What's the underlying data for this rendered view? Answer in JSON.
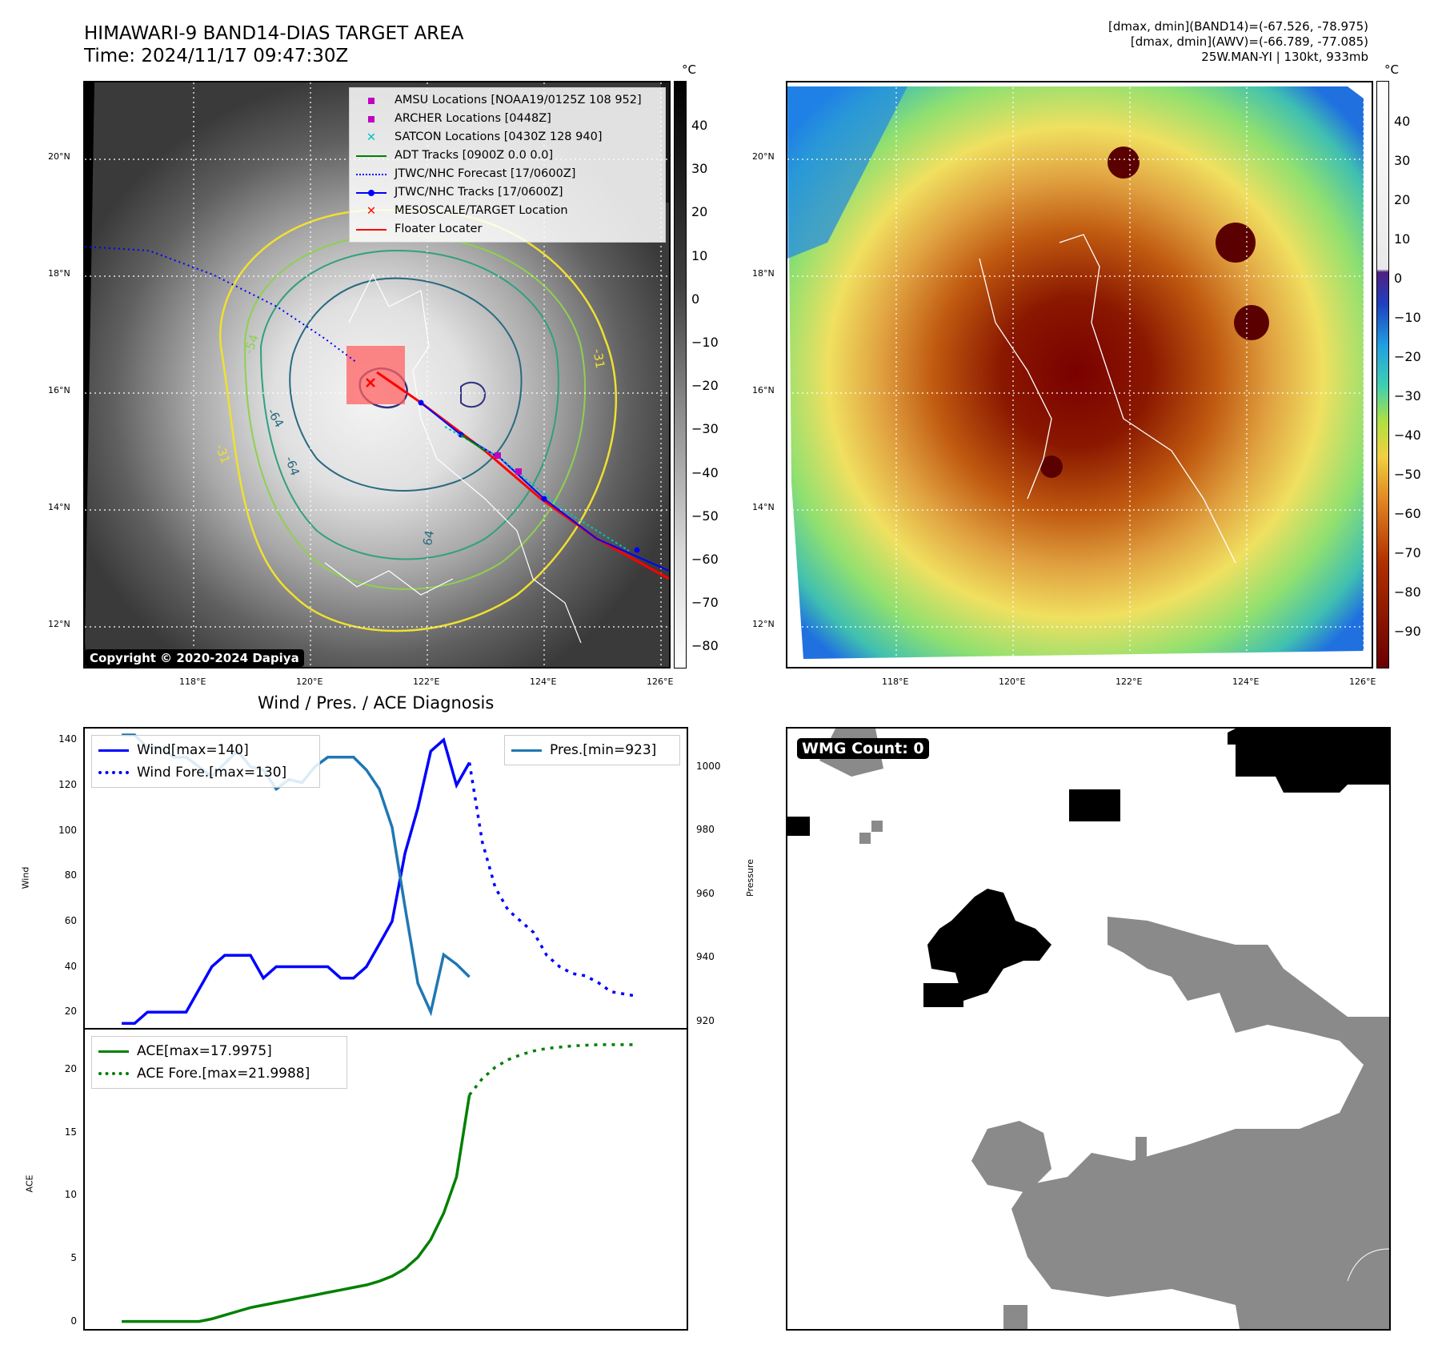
{
  "header": {
    "title_line1": "HIMAWARI-9 BAND14-DIAS TARGET AREA",
    "title_line2": "Time: 2024/11/17 09:47:30Z",
    "info_line1": "[dmax, dmin](BAND14)=(-67.526, -78.975)",
    "info_line2": "[dmax, dmin](AWV)=(-66.789, -77.085)",
    "info_line3": "25W.MAN-YI | 130kt, 933mb"
  },
  "map_axes": {
    "lat_labels": [
      "20°N",
      "18°N",
      "16°N",
      "14°N",
      "12°N"
    ],
    "lon_labels": [
      "118°E",
      "120°E",
      "122°E",
      "124°E",
      "126°E"
    ]
  },
  "ir_panel": {
    "legend": [
      {
        "label": "AMSU Locations [NOAA19/0125Z 108 952]",
        "color": "#c000c0",
        "kind": "square"
      },
      {
        "label": "ARCHER Locations [0448Z]",
        "color": "#c000c0",
        "kind": "square"
      },
      {
        "label": "SATCON Locations [0430Z 128 940]",
        "color": "#00c0c0",
        "kind": "x"
      },
      {
        "label": "ADT Tracks [0900Z 0.0 0.0]",
        "color": "#008000",
        "kind": "line"
      },
      {
        "label": "JTWC/NHC Forecast [17/0600Z]",
        "color": "#0000ff",
        "kind": "dotted"
      },
      {
        "label": "JTWC/NHC Tracks [17/0600Z]",
        "color": "#0000ff",
        "kind": "line-dot"
      },
      {
        "label": "MESOSCALE/TARGET Location",
        "color": "#ff0000",
        "kind": "x"
      },
      {
        "label": "Floater Locater",
        "color": "#ff0000",
        "kind": "line"
      }
    ],
    "contour_labels": [
      "-54",
      "-64",
      "-31",
      "-64",
      "-31",
      "64"
    ],
    "copyright": "Copyright © 2020-2024 Dapiya",
    "colorbar_unit": "°C",
    "colorbar_ticks": [
      "40",
      "30",
      "20",
      "10",
      "0",
      "−10",
      "−20",
      "−30",
      "−40",
      "−50",
      "−60",
      "−70",
      "−80"
    ]
  },
  "wv_panel": {
    "colorbar_unit": "°C",
    "colorbar_ticks": [
      "40",
      "30",
      "20",
      "10",
      "0",
      "−10",
      "−20",
      "−30",
      "−40",
      "−50",
      "−60",
      "−70",
      "−80",
      "−90"
    ]
  },
  "chart_data": [
    {
      "type": "line",
      "title": "Wind / Pres. / ACE Diagnosis",
      "ylabel": "Wind",
      "ylabel_right": "Pressure",
      "ylim": [
        13,
        145
      ],
      "ylim_right": [
        918,
        1012
      ],
      "yticks": [
        "20",
        "40",
        "60",
        "80",
        "100",
        "120",
        "140"
      ],
      "yticks_right": [
        "920",
        "940",
        "960",
        "980",
        "1000"
      ],
      "series": [
        {
          "name": "Wind[max=140]",
          "color": "#0000ff",
          "style": "solid",
          "axis": "left",
          "x": [
            0,
            1,
            2,
            3,
            4,
            5,
            6,
            7,
            8,
            9,
            10,
            11,
            12,
            13,
            14,
            15,
            16,
            17,
            18,
            19,
            20,
            21,
            22,
            23,
            24,
            25,
            26,
            27
          ],
          "values": [
            15,
            15,
            20,
            20,
            20,
            20,
            30,
            40,
            45,
            45,
            45,
            35,
            40,
            40,
            40,
            40,
            40,
            35,
            35,
            40,
            50,
            60,
            90,
            110,
            135,
            140,
            120,
            130
          ]
        },
        {
          "name": "Wind Fore.[max=130]",
          "color": "#0000ff",
          "style": "dotted",
          "axis": "left",
          "x": [
            27,
            28,
            29,
            30,
            31,
            32,
            33,
            34,
            35,
            36,
            37,
            38,
            39,
            40
          ],
          "values": [
            130,
            95,
            75,
            65,
            60,
            55,
            45,
            40,
            37,
            36,
            33,
            29,
            28,
            27
          ]
        },
        {
          "name": "Pres.[min=923]",
          "color": "#1f77b4",
          "style": "solid",
          "axis": "right",
          "x": [
            0,
            1,
            2,
            3,
            4,
            5,
            6,
            7,
            8,
            9,
            10,
            11,
            12,
            13,
            14,
            15,
            16,
            17,
            18,
            19,
            20,
            21,
            22,
            23,
            24,
            25,
            26,
            27
          ],
          "values": [
            1010,
            1010,
            1006,
            1006,
            1003,
            1003,
            1000,
            997,
            1001,
            1005,
            1000,
            999,
            993,
            996,
            995,
            1000,
            1003,
            1003,
            1003,
            999,
            993,
            981,
            956,
            932,
            923,
            941,
            938,
            934
          ]
        }
      ]
    },
    {
      "type": "line",
      "ylabel": "ACE",
      "ylim": [
        -0.6,
        23.2
      ],
      "yticks": [
        "0",
        "5",
        "10",
        "15",
        "20"
      ],
      "series": [
        {
          "name": "ACE[max=17.9975]",
          "color": "#008000",
          "style": "solid",
          "x": [
            0,
            1,
            2,
            3,
            4,
            5,
            6,
            7,
            8,
            9,
            10,
            11,
            12,
            13,
            14,
            15,
            16,
            17,
            18,
            19,
            20,
            21,
            22,
            23,
            24,
            25,
            26,
            27
          ],
          "values": [
            0,
            0,
            0,
            0,
            0,
            0,
            0,
            0.2,
            0.5,
            0.8,
            1.1,
            1.3,
            1.5,
            1.7,
            1.9,
            2.1,
            2.3,
            2.5,
            2.7,
            2.9,
            3.2,
            3.6,
            4.2,
            5.1,
            6.5,
            8.6,
            11.5,
            18.0
          ]
        },
        {
          "name": "ACE Fore.[max=21.9988]",
          "color": "#008000",
          "style": "dotted",
          "x": [
            27,
            28,
            29,
            30,
            31,
            32,
            33,
            34,
            35,
            36,
            37,
            38,
            39,
            40
          ],
          "values": [
            18.0,
            19.3,
            20.2,
            20.8,
            21.2,
            21.5,
            21.7,
            21.8,
            21.9,
            21.95,
            22.0,
            22.0,
            22.0,
            22.0
          ]
        }
      ]
    }
  ],
  "wmg_panel": {
    "badge": "WMG Count: 0"
  },
  "colors": {
    "wind": "#0000ff",
    "pressure": "#1f77b4",
    "ace": "#008000",
    "floater": "#ff0000"
  }
}
